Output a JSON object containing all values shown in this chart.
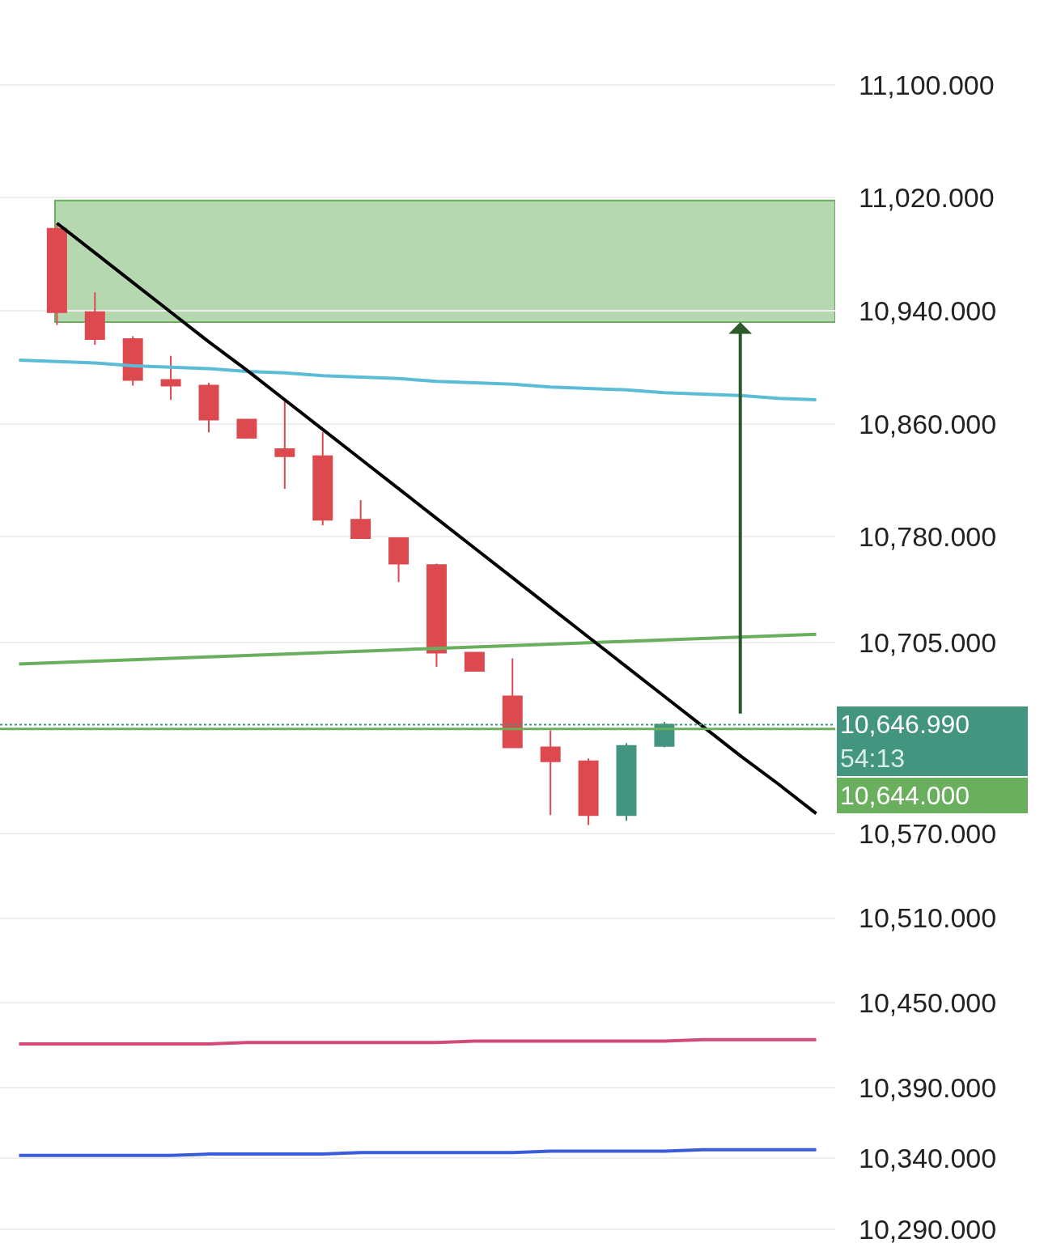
{
  "chart_data": {
    "type": "candlestick",
    "categories": [
      null,
      null,
      null,
      null,
      null,
      null,
      null,
      null,
      null,
      null,
      null,
      null,
      null,
      null,
      null,
      null,
      null,
      null,
      null,
      null,
      null,
      null
    ],
    "ohlc": [
      null,
      [
        10998,
        11002,
        10930,
        10939
      ],
      [
        10939,
        10953,
        10916,
        10920
      ],
      [
        10920,
        10922,
        10887,
        10891
      ],
      [
        10891,
        10908,
        10877,
        10887
      ],
      [
        10887,
        10889,
        10854,
        10863
      ],
      [
        10863,
        10863,
        10850,
        10850
      ],
      [
        10842,
        10876,
        10814,
        10837
      ],
      [
        10837,
        10854,
        10788,
        10792
      ],
      [
        10792,
        10806,
        10779,
        10779
      ],
      [
        10779,
        10779,
        10748,
        10761
      ],
      [
        10760,
        10761,
        10688,
        10698
      ],
      [
        10698,
        10698,
        10685,
        10685
      ],
      [
        10667,
        10694,
        10631,
        10631
      ],
      [
        10631,
        10643,
        10583,
        10621
      ],
      [
        10621,
        10623,
        10576,
        10583
      ],
      [
        10583,
        10634,
        10579,
        10632
      ],
      [
        10632,
        10649,
        10631,
        10647
      ],
      null,
      null,
      null,
      null
    ],
    "colors": [
      null,
      "#dc4a4f",
      "#dc4a4f",
      "#dc4a4f",
      "#dc4a4f",
      "#dc4a4f",
      "#dc4a4f",
      "#dc4a4f",
      "#dc4a4f",
      "#dc4a4f",
      "#dc4a4f",
      "#dc4a4f",
      "#dc4a4f",
      "#dc4a4f",
      "#dc4a4f",
      "#dc4a4f",
      "#43957f",
      "#43957f",
      null,
      null,
      null,
      null
    ],
    "series": [
      {
        "type": "line",
        "color": "#5bbcd6",
        "values": [
          10905,
          10904,
          10903,
          10901,
          10900,
          10899,
          10897,
          10896,
          10894,
          10893,
          10892,
          10890,
          10889,
          10888,
          10886,
          10885,
          10884,
          10882,
          10881,
          10880,
          10878,
          10877
        ]
      },
      {
        "type": "line",
        "color": "#6aaf5e",
        "values": [
          10690,
          10691,
          10692,
          10693,
          10694,
          10695,
          10696,
          10697,
          10698,
          10699,
          10700,
          10701,
          10702,
          10703,
          10704,
          10705,
          10706,
          10707,
          10708,
          10709,
          10710,
          10711
        ]
      },
      {
        "type": "line",
        "color": "#000000",
        "values": [
          null,
          11002,
          10981,
          10960,
          10939,
          10918,
          10898,
          10877,
          10856,
          10835,
          10814,
          10793,
          10772,
          10751,
          10730,
          10709,
          10688,
          10667,
          10646,
          10625,
          10605,
          10584
        ]
      },
      {
        "type": "line",
        "color": "#d34a75",
        "values": [
          10421,
          10421,
          10421,
          10421,
          10421,
          10421,
          10422,
          10422,
          10422,
          10422,
          10422,
          10422,
          10423,
          10423,
          10423,
          10423,
          10423,
          10423,
          10424,
          10424,
          10424,
          10424
        ]
      },
      {
        "type": "line",
        "color": "#3b5bdb",
        "values": [
          10342,
          10342,
          10342,
          10342,
          10342,
          10343,
          10343,
          10343,
          10343,
          10344,
          10344,
          10344,
          10344,
          10344,
          10345,
          10345,
          10345,
          10345,
          10346,
          10346,
          10346,
          10346
        ]
      }
    ],
    "bands": [
      {
        "axis": "y",
        "from": 10932,
        "to": 11018,
        "color": "#b5d8b0"
      }
    ],
    "ref_lines": [
      {
        "axis": "y",
        "value": 10646.99,
        "label": "10,646.990",
        "color": "#43957f",
        "line_style": "dotted"
      },
      {
        "axis": "y",
        "value": 10644,
        "label": "10,644.000",
        "color": "#6aaf5e",
        "line_style": "solid"
      }
    ],
    "annotations": [
      "54:13"
    ],
    "ylim": [
      10268,
      11160
    ],
    "yticks": [
      {
        "value": 11100,
        "label": "11,100.000"
      },
      {
        "value": 11020,
        "label": "11,020.000"
      },
      {
        "value": 10940,
        "label": "10,940.000"
      },
      {
        "value": 10860,
        "label": "10,860.000"
      },
      {
        "value": 10780,
        "label": "10,780.000"
      },
      {
        "value": 10705,
        "label": "10,705.000"
      },
      {
        "value": 10570,
        "label": "10,570.000"
      },
      {
        "value": 10510,
        "label": "10,510.000"
      },
      {
        "value": 10450,
        "label": "10,450.000"
      },
      {
        "value": 10390,
        "label": "10,390.000"
      },
      {
        "value": 10340,
        "label": "10,340.000"
      },
      {
        "value": 10290,
        "label": "10,290.000"
      }
    ],
    "tick_labels": "y",
    "grid": "y"
  }
}
